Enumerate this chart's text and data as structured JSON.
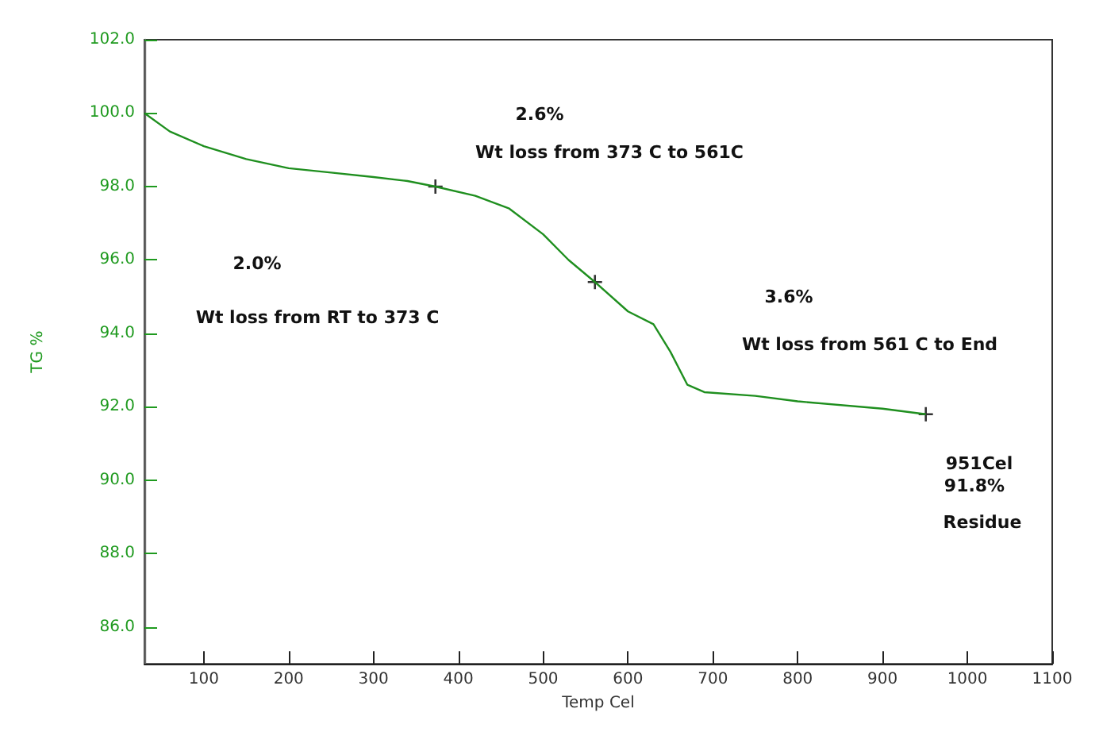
{
  "chart_data": {
    "type": "line",
    "xlabel": "Temp Cel",
    "ylabel": "TG %",
    "xlim": [
      30,
      1100
    ],
    "xticks": [
      100,
      200,
      300,
      400,
      500,
      600,
      700,
      800,
      900,
      1000,
      1100
    ],
    "ylim": [
      85,
      102
    ],
    "yticks": [
      {
        "value": 86,
        "label": "86.0"
      },
      {
        "value": 88,
        "label": "88.0"
      },
      {
        "value": 90,
        "label": "90.0"
      },
      {
        "value": 92,
        "label": "92.0"
      },
      {
        "value": 94,
        "label": "94.0"
      },
      {
        "value": 96,
        "label": "96.0"
      },
      {
        "value": 98,
        "label": "98.0"
      },
      {
        "value": 100,
        "label": "100.0"
      },
      {
        "value": 102,
        "label": "102.0"
      }
    ],
    "grid": false,
    "series": [
      {
        "color": "#1f8f1f",
        "marker": "none",
        "x": [
          30,
          60,
          100,
          150,
          200,
          250,
          300,
          340,
          373,
          420,
          460,
          500,
          530,
          561,
          600,
          630,
          650,
          670,
          690,
          750,
          800,
          900,
          951
        ],
        "values": [
          100.0,
          99.5,
          99.1,
          98.75,
          98.5,
          98.38,
          98.26,
          98.15,
          98.0,
          97.75,
          97.4,
          96.7,
          96.0,
          95.4,
          94.6,
          94.25,
          93.5,
          92.6,
          92.4,
          92.3,
          92.15,
          91.95,
          91.8
        ]
      },
      {
        "type": "scatter",
        "color": "#000000",
        "marker": "cross",
        "x": [
          373,
          561,
          951
        ],
        "values": [
          98.0,
          95.4,
          91.8
        ]
      }
    ],
    "annotations": [
      "2.0%",
      "Wt loss from RT to 373 C",
      "2.6%",
      "Wt loss from 373 C to 561C",
      "3.6%",
      "Wt loss from 561 C to End",
      "951Cel",
      "91.8%",
      "Residue"
    ]
  }
}
